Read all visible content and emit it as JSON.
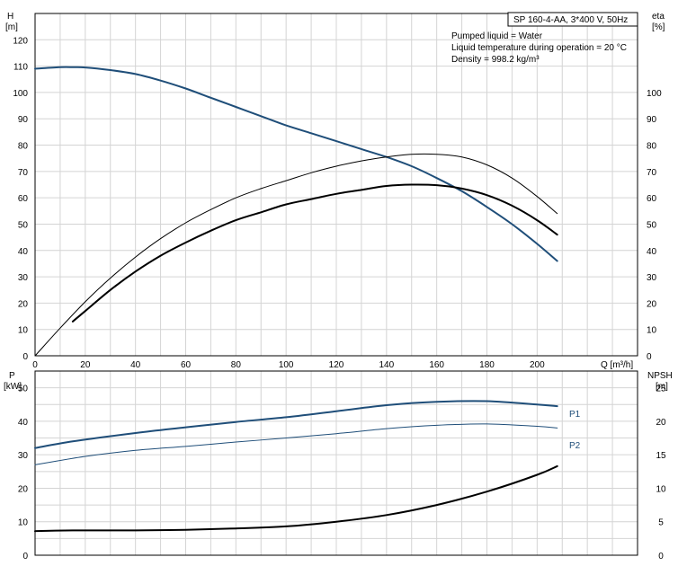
{
  "chart_data": [
    {
      "type": "line",
      "title": "SP 160-4-AA, 3*400 V, 50Hz",
      "info": [
        "Pumped liquid = Water",
        "Liquid temperature during operation = 20 °C",
        "Density = 998.2 kg/m³"
      ],
      "xlabel": "Q [m³/h]",
      "ylabel_left": "H",
      "ylabel_left_unit": "[m]",
      "ylabel_right": "eta",
      "ylabel_right_unit": "[%]",
      "xlim": [
        0,
        240
      ],
      "ylim": [
        0,
        130
      ],
      "grid": true,
      "x_ticks": [
        "0",
        "20",
        "40",
        "60",
        "80",
        "100",
        "120",
        "140",
        "160",
        "180",
        "200"
      ],
      "y_left_ticks": [
        "0",
        "10",
        "20",
        "30",
        "40",
        "50",
        "60",
        "70",
        "80",
        "90",
        "100",
        "110",
        "120"
      ],
      "y_right_ticks": [
        "0",
        "10",
        "20",
        "30",
        "40",
        "50",
        "60",
        "70",
        "80",
        "90",
        "100"
      ],
      "series": [
        {
          "color": "#1f4e79",
          "width": 2,
          "x": [
            0,
            10,
            15,
            20,
            30,
            40,
            50,
            60,
            70,
            80,
            90,
            100,
            110,
            120,
            130,
            140,
            150,
            160,
            170,
            180,
            190,
            200,
            208
          ],
          "values": [
            109,
            109.6,
            109.6,
            109.5,
            108.5,
            107,
            104.5,
            101.5,
            98,
            94.5,
            91,
            87.5,
            84.5,
            81.5,
            78.5,
            75.5,
            72,
            67.5,
            62.5,
            56.5,
            50,
            42.5,
            36
          ]
        },
        {
          "color": "#000000",
          "width": 1,
          "x": [
            0,
            10,
            20,
            30,
            40,
            50,
            60,
            70,
            80,
            90,
            100,
            110,
            120,
            130,
            140,
            150,
            160,
            170,
            180,
            190,
            200,
            208
          ],
          "values": [
            0,
            10.5,
            20.5,
            29.5,
            37.5,
            44.5,
            50.5,
            55.5,
            60,
            63.5,
            66.5,
            69.5,
            72,
            74,
            75.5,
            76.5,
            76.5,
            75.5,
            72.5,
            67.5,
            60.5,
            54
          ]
        },
        {
          "color": "#000000",
          "width": 2,
          "x": [
            15,
            20,
            30,
            40,
            50,
            60,
            70,
            80,
            90,
            100,
            110,
            120,
            130,
            140,
            150,
            160,
            170,
            180,
            190,
            200,
            208
          ],
          "values": [
            13,
            17,
            25,
            32,
            38,
            43,
            47.5,
            51.5,
            54.5,
            57.5,
            59.5,
            61.5,
            63,
            64.5,
            65,
            64.8,
            63.5,
            61,
            57,
            51.5,
            46
          ]
        }
      ]
    },
    {
      "type": "line",
      "xlim": [
        0,
        240
      ],
      "ylabel_left": "P",
      "ylabel_left_unit": "[kW]",
      "ylim_left": [
        0,
        55
      ],
      "ylabel_right": "NPSH",
      "ylabel_right_unit": "[m]",
      "ylim_right": [
        0,
        27.5
      ],
      "grid": true,
      "y_left_ticks": [
        "0",
        "10",
        "20",
        "30",
        "40",
        "50"
      ],
      "y_right_ticks": [
        "0",
        "5",
        "10",
        "15",
        "20",
        "25"
      ],
      "series": [
        {
          "name": "P1",
          "axis": "left",
          "color": "#1f4e79",
          "width": 2,
          "x": [
            0,
            15,
            40,
            60,
            80,
            100,
            120,
            140,
            160,
            180,
            200,
            208
          ],
          "values": [
            32,
            34,
            36.5,
            38.2,
            39.8,
            41.2,
            43,
            44.8,
            45.8,
            46,
            45,
            44.5
          ]
        },
        {
          "name": "P2",
          "axis": "left",
          "color": "#1f4e79",
          "width": 1,
          "x": [
            0,
            20,
            40,
            60,
            80,
            100,
            120,
            140,
            160,
            180,
            200,
            208
          ],
          "values": [
            27,
            29.5,
            31.3,
            32.5,
            33.8,
            35,
            36.3,
            37.8,
            38.8,
            39.2,
            38.5,
            38
          ]
        },
        {
          "axis": "right",
          "color": "#000000",
          "width": 2,
          "x": [
            0,
            15,
            40,
            60,
            80,
            100,
            120,
            140,
            160,
            180,
            200,
            208
          ],
          "values": [
            3.6,
            3.7,
            3.7,
            3.8,
            4,
            4.3,
            5,
            6,
            7.5,
            9.5,
            12,
            13.3
          ]
        }
      ]
    }
  ]
}
